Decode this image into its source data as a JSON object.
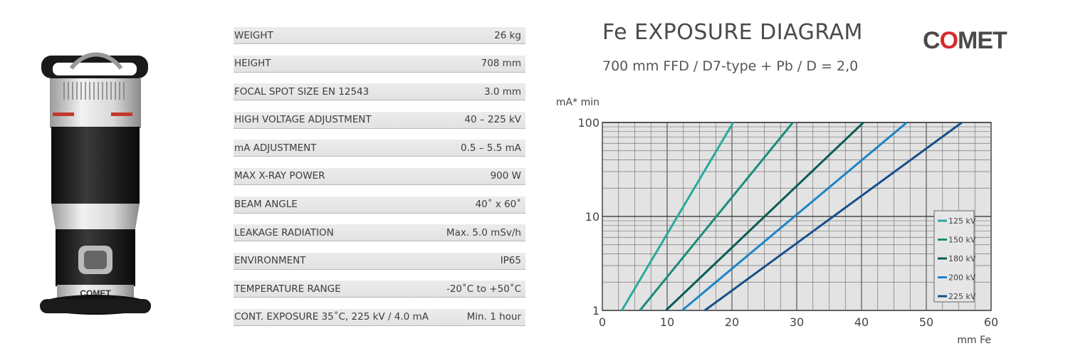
{
  "product": {
    "logo_text": "COMET"
  },
  "specs": [
    {
      "label": "WEIGHT",
      "value": "26 kg"
    },
    {
      "label": "HEIGHT",
      "value": "708 mm"
    },
    {
      "label": "FOCAL SPOT SIZE EN 12543",
      "value": "3.0 mm"
    },
    {
      "label": "HIGH VOLTAGE ADJUSTMENT",
      "value": "40 – 225 kV"
    },
    {
      "label": "mA ADJUSTMENT",
      "value": "0.5 – 5.5 mA"
    },
    {
      "label": "MAX X-RAY POWER",
      "value": "900 W"
    },
    {
      "label": "BEAM ANGLE",
      "value": "40˚ x 60˚"
    },
    {
      "label": "LEAKAGE RADIATION",
      "value": "Max. 5.0 mSv/h"
    },
    {
      "label": "ENVIRONMENT",
      "value": "IP65"
    },
    {
      "label": "TEMPERATURE RANGE",
      "value": "-20˚C to +50˚C"
    },
    {
      "label": "CONT. EXPOSURE  35˚C, 225 kV / 4.0 mA",
      "value": "Min. 1 hour"
    }
  ],
  "brand": {
    "prefix": "C",
    "o": "O",
    "suffix": "MET"
  },
  "chart_data": {
    "type": "line",
    "title": "Fe EXPOSURE DIAGRAM",
    "subtitle": "700 mm FFD / D7-type + Pb / D = 2,0",
    "xlabel": "mm Fe",
    "ylabel": "mA* min",
    "xlim": [
      0,
      60
    ],
    "ylim": [
      1,
      100
    ],
    "yscale": "log",
    "x_ticks": [
      "0",
      "10",
      "20",
      "30",
      "40",
      "50",
      "60"
    ],
    "y_ticks": [
      "1",
      "10",
      "100"
    ],
    "grid": true,
    "legend_position": "bottom-right",
    "series": [
      {
        "name": "125 kV",
        "color": "#2aa9a0",
        "points": [
          [
            3,
            1
          ],
          [
            20.2,
            100
          ]
        ]
      },
      {
        "name": "150 kV",
        "color": "#1c8c7a",
        "points": [
          [
            5.8,
            1
          ],
          [
            29.4,
            100
          ]
        ]
      },
      {
        "name": "180 kV",
        "color": "#0b5c55",
        "points": [
          [
            9.8,
            1
          ],
          [
            40.3,
            100
          ]
        ]
      },
      {
        "name": "200 kV",
        "color": "#1b86c6",
        "points": [
          [
            12.3,
            1
          ],
          [
            47.0,
            100
          ]
        ]
      },
      {
        "name": "225 kV",
        "color": "#17508a",
        "points": [
          [
            15.8,
            1
          ],
          [
            55.5,
            100
          ]
        ]
      }
    ]
  }
}
